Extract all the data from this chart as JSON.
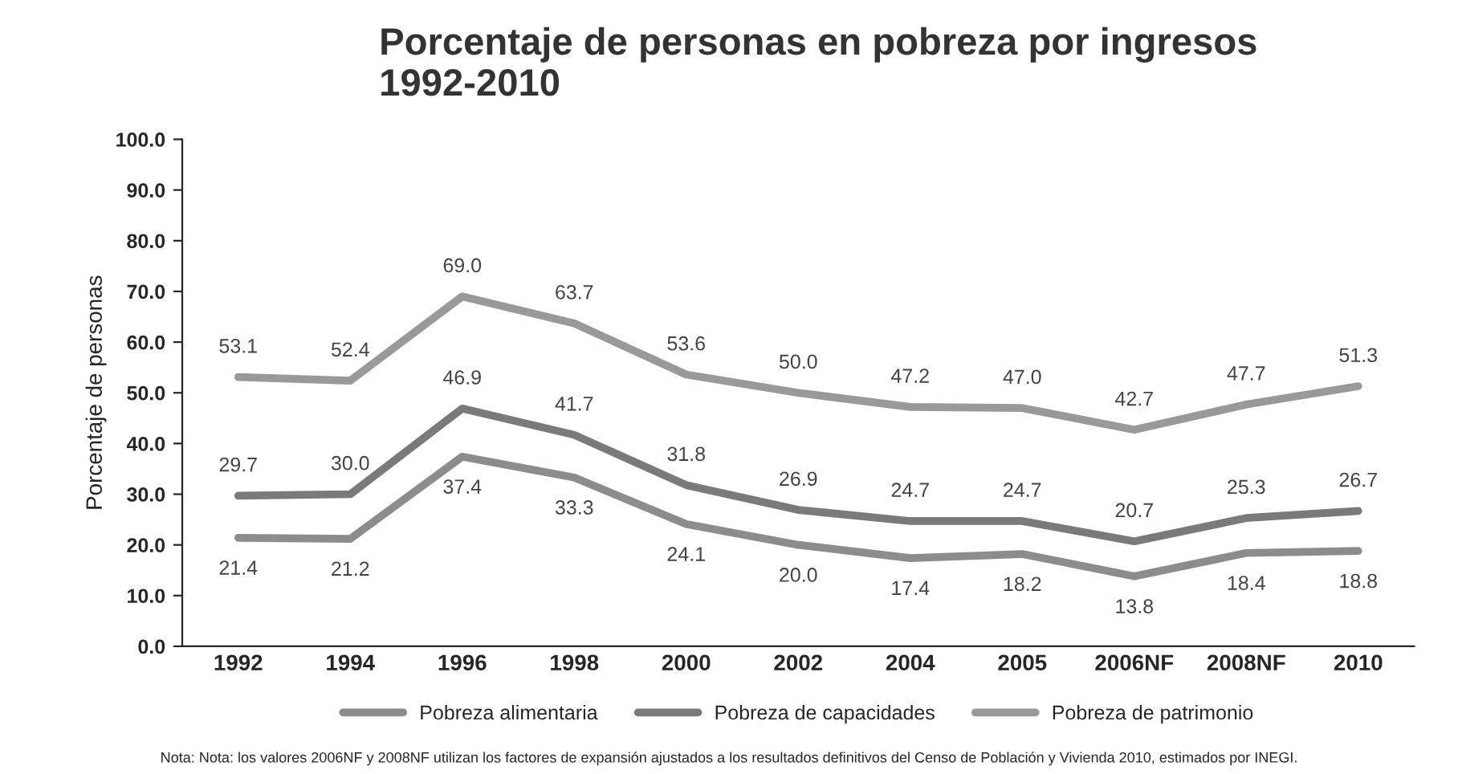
{
  "chart_data": {
    "type": "line",
    "title": "Porcentaje de personas en pobreza por ingresos\n1992-2010",
    "ylabel": "Porcentaje de personas",
    "categories": [
      "1992",
      "1994",
      "1996",
      "1998",
      "2000",
      "2002",
      "2004",
      "2005",
      "2006NF",
      "2008NF",
      "2010"
    ],
    "series": [
      {
        "name": "Pobreza alimentaria",
        "color": "#8c8c8c",
        "values": [
          21.4,
          21.2,
          37.4,
          33.3,
          24.1,
          20.0,
          17.4,
          18.2,
          13.8,
          18.4,
          18.8
        ],
        "value_labels": [
          "21.4",
          "21.2",
          "37.4",
          "33.3",
          "24.1",
          "20.0",
          "17.4",
          "18.2",
          "13.8",
          "18.4",
          "18.8"
        ]
      },
      {
        "name": "Pobreza de capacidades",
        "color": "#7a7a7a",
        "values": [
          29.7,
          30.0,
          46.9,
          41.7,
          31.8,
          26.9,
          24.7,
          24.7,
          20.7,
          25.3,
          26.7
        ],
        "value_labels": [
          "29.7",
          "30.0",
          "46.9",
          "41.7",
          "31.8",
          "26.9",
          "24.7",
          "24.7",
          "20.7",
          "25.3",
          "26.7"
        ]
      },
      {
        "name": "Pobreza de patrimonio",
        "color": "#999999",
        "values": [
          53.1,
          52.4,
          69.0,
          63.7,
          53.6,
          50.0,
          47.2,
          47.0,
          42.7,
          47.7,
          51.3
        ],
        "value_labels": [
          "53.1",
          "52.4",
          "69.0",
          "63.7",
          "53.6",
          "50.0",
          "47.2",
          "47.0",
          "42.7",
          "47.7",
          "51.3"
        ]
      }
    ],
    "ylim": [
      0,
      100
    ],
    "yticks": [
      {
        "value": 0,
        "label": "0.0"
      },
      {
        "value": 10,
        "label": "10.0"
      },
      {
        "value": 20,
        "label": "20.0"
      },
      {
        "value": 30,
        "label": "30.0"
      },
      {
        "value": 40,
        "label": "40.0"
      },
      {
        "value": 50,
        "label": "50.0"
      },
      {
        "value": 60,
        "label": "60.0"
      },
      {
        "value": 70,
        "label": "70.0"
      },
      {
        "value": 80,
        "label": "80.0"
      },
      {
        "value": 90,
        "label": "90.0"
      },
      {
        "value": 100,
        "label": "100.0"
      }
    ],
    "legend": "bottom",
    "grid": false,
    "marker": "none",
    "line_style": "solid",
    "annotations": [
      "Nota: Nota: los valores 2006NF y 2008NF utilizan los factores de expansión ajustados a los resultados definitivos del Censo de Población y Vivienda 2010, estimados por INEGI."
    ]
  }
}
